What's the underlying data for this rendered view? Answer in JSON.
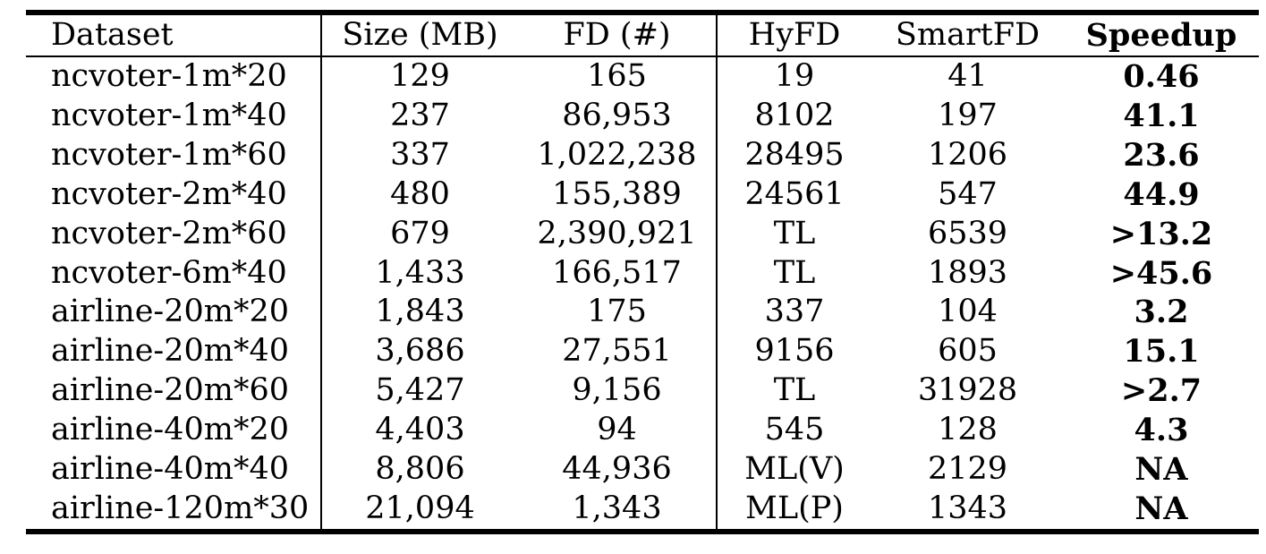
{
  "table": {
    "headers": [
      "Dataset",
      "Size (MB)",
      "FD (#)",
      "HyFD",
      "SmartFD",
      "Speedup"
    ],
    "rows": [
      {
        "dataset": "ncvoter-1m*20",
        "size": "129",
        "fd": "165",
        "hyfd": "19",
        "smartfd": "41",
        "speedup": "0.46"
      },
      {
        "dataset": "ncvoter-1m*40",
        "size": "237",
        "fd": "86,953",
        "hyfd": "8102",
        "smartfd": "197",
        "speedup": "41.1"
      },
      {
        "dataset": "ncvoter-1m*60",
        "size": "337",
        "fd": "1,022,238",
        "hyfd": "28495",
        "smartfd": "1206",
        "speedup": "23.6"
      },
      {
        "dataset": "ncvoter-2m*40",
        "size": "480",
        "fd": "155,389",
        "hyfd": "24561",
        "smartfd": "547",
        "speedup": "44.9"
      },
      {
        "dataset": "ncvoter-2m*60",
        "size": "679",
        "fd": "2,390,921",
        "hyfd": "TL",
        "smartfd": "6539",
        "speedup": ">13.2"
      },
      {
        "dataset": "ncvoter-6m*40",
        "size": "1,433",
        "fd": "166,517",
        "hyfd": "TL",
        "smartfd": "1893",
        "speedup": ">45.6"
      },
      {
        "dataset": "airline-20m*20",
        "size": "1,843",
        "fd": "175",
        "hyfd": "337",
        "smartfd": "104",
        "speedup": "3.2"
      },
      {
        "dataset": "airline-20m*40",
        "size": "3,686",
        "fd": "27,551",
        "hyfd": "9156",
        "smartfd": "605",
        "speedup": "15.1"
      },
      {
        "dataset": "airline-20m*60",
        "size": "5,427",
        "fd": "9,156",
        "hyfd": "TL",
        "smartfd": "31928",
        "speedup": ">2.7"
      },
      {
        "dataset": "airline-40m*20",
        "size": "4,403",
        "fd": "94",
        "hyfd": "545",
        "smartfd": "128",
        "speedup": "4.3"
      },
      {
        "dataset": "airline-40m*40",
        "size": "8,806",
        "fd": "44,936",
        "hyfd": "ML(V)",
        "smartfd": "2129",
        "speedup": "NA"
      },
      {
        "dataset": "airline-120m*30",
        "size": "21,094",
        "fd": "1,343",
        "hyfd": "ML(P)",
        "smartfd": "1343",
        "speedup": "NA"
      }
    ]
  }
}
